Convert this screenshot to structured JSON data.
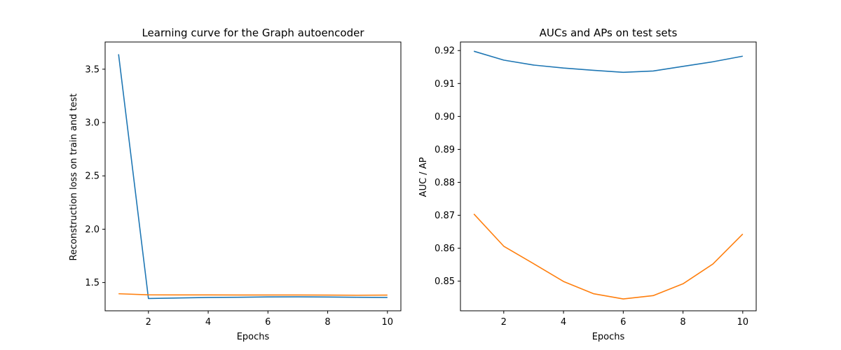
{
  "chart_data": [
    {
      "type": "line",
      "title": "Learning curve for the Graph autoencoder",
      "xlabel": "Epochs",
      "ylabel": "Reconstruction loss on train and test",
      "xlim": [
        0.55,
        10.45
      ],
      "ylim": [
        1.235,
        3.755
      ],
      "xticks": [
        2,
        4,
        6,
        8,
        10
      ],
      "yticks": [
        1.5,
        2.0,
        2.5,
        3.0,
        3.5
      ],
      "xtick_labels": [
        "2",
        "4",
        "6",
        "8",
        "10"
      ],
      "ytick_labels": [
        "1.5",
        "2.0",
        "2.5",
        "3.0",
        "3.5"
      ],
      "grid": false,
      "x": [
        1,
        2,
        3,
        4,
        5,
        6,
        7,
        8,
        9,
        10
      ],
      "series": [
        {
          "color": "#1f77b4",
          "values": [
            3.64,
            1.35,
            1.355,
            1.36,
            1.362,
            1.365,
            1.366,
            1.364,
            1.362,
            1.36
          ]
        },
        {
          "color": "#ff7f0e",
          "values": [
            1.395,
            1.385,
            1.384,
            1.384,
            1.383,
            1.383,
            1.383,
            1.382,
            1.381,
            1.382
          ]
        }
      ]
    },
    {
      "type": "line",
      "title": "AUCs and APs on test sets",
      "xlabel": "Epochs",
      "ylabel": "AUC / AP",
      "xlim": [
        0.55,
        10.45
      ],
      "ylim": [
        0.841,
        0.9226
      ],
      "xticks": [
        2,
        4,
        6,
        8,
        10
      ],
      "yticks": [
        0.85,
        0.86,
        0.87,
        0.88,
        0.89,
        0.9,
        0.91,
        0.92
      ],
      "xtick_labels": [
        "2",
        "4",
        "6",
        "8",
        "10"
      ],
      "ytick_labels": [
        "0.85",
        "0.86",
        "0.87",
        "0.88",
        "0.89",
        "0.90",
        "0.91",
        "0.92"
      ],
      "grid": false,
      "x": [
        1,
        2,
        3,
        4,
        5,
        6,
        7,
        8,
        9,
        10
      ],
      "series": [
        {
          "color": "#1f77b4",
          "values": [
            0.9198,
            0.9171,
            0.9156,
            0.9147,
            0.914,
            0.9134,
            0.9138,
            0.9152,
            0.9166,
            0.9183
          ]
        },
        {
          "color": "#ff7f0e",
          "values": [
            0.8704,
            0.8606,
            0.8553,
            0.8499,
            0.8462,
            0.8446,
            0.8456,
            0.8492,
            0.8552,
            0.8643
          ]
        }
      ]
    }
  ]
}
